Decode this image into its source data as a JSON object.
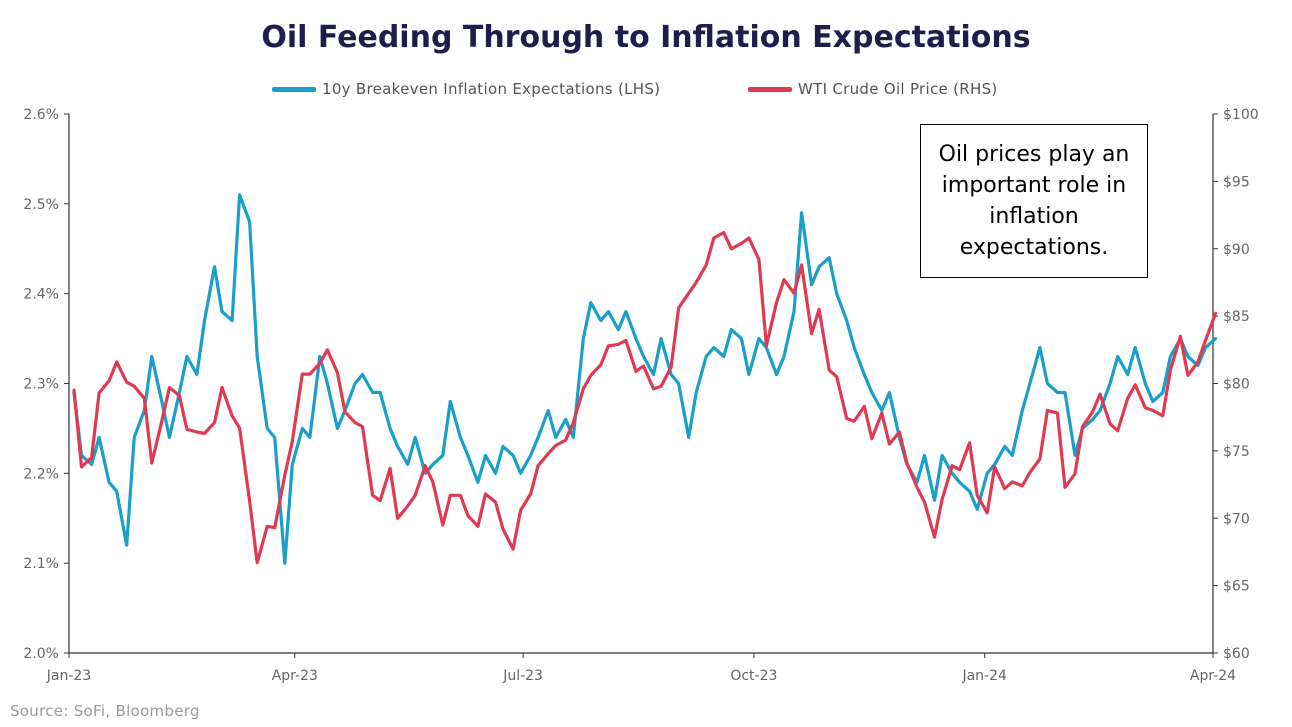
{
  "title": "Oil Feeding Through to Inflation Expectations",
  "source": "Source: SoFi, Bloomberg",
  "annotation": "Oil prices play an important role in inflation expectations.",
  "colors": {
    "breakeven": "#1a9fc9",
    "oil": "#e03a53",
    "title": "#1f1d4b"
  },
  "chart_data": {
    "type": "line",
    "title": "Oil Feeding Through to Inflation Expectations",
    "legend_position": "top-center",
    "grid": false,
    "x_tick_labels": [
      "Jan-23",
      "Apr-23",
      "Jul-23",
      "Oct-23",
      "Jan-24",
      "Apr-24"
    ],
    "x_range": [
      "2023-01-01",
      "2024-04-01"
    ],
    "y_left": {
      "range": [
        2.0,
        2.6
      ],
      "ticks": [
        2.0,
        2.1,
        2.2,
        2.3,
        2.4,
        2.5,
        2.6
      ],
      "tick_labels": [
        "2.0%",
        "2.1%",
        "2.2%",
        "2.3%",
        "2.4%",
        "2.5%",
        "2.6%"
      ]
    },
    "y_right": {
      "range": [
        60,
        100
      ],
      "ticks": [
        60,
        65,
        70,
        75,
        80,
        85,
        90,
        95,
        100
      ],
      "tick_labels": [
        "$60",
        "$65",
        "$70",
        "$75",
        "$80",
        "$85",
        "$90",
        "$95",
        "$100"
      ]
    },
    "series": [
      {
        "name": "10y Breakeven Inflation Expectations (LHS)",
        "axis": "left",
        "points": [
          [
            "2023-01-03",
            2.29
          ],
          [
            "2023-01-06",
            2.22
          ],
          [
            "2023-01-10",
            2.21
          ],
          [
            "2023-01-13",
            2.24
          ],
          [
            "2023-01-17",
            2.19
          ],
          [
            "2023-01-20",
            2.18
          ],
          [
            "2023-01-24",
            2.12
          ],
          [
            "2023-01-27",
            2.24
          ],
          [
            "2023-01-31",
            2.27
          ],
          [
            "2023-02-03",
            2.33
          ],
          [
            "2023-02-07",
            2.28
          ],
          [
            "2023-02-10",
            2.24
          ],
          [
            "2023-02-14",
            2.29
          ],
          [
            "2023-02-17",
            2.33
          ],
          [
            "2023-02-21",
            2.31
          ],
          [
            "2023-02-24",
            2.37
          ],
          [
            "2023-02-28",
            2.43
          ],
          [
            "2023-03-03",
            2.38
          ],
          [
            "2023-03-07",
            2.37
          ],
          [
            "2023-03-10",
            2.51
          ],
          [
            "2023-03-14",
            2.48
          ],
          [
            "2023-03-17",
            2.33
          ],
          [
            "2023-03-21",
            2.25
          ],
          [
            "2023-03-24",
            2.24
          ],
          [
            "2023-03-28",
            2.1
          ],
          [
            "2023-03-31",
            2.21
          ],
          [
            "2023-04-04",
            2.25
          ],
          [
            "2023-04-07",
            2.24
          ],
          [
            "2023-04-11",
            2.33
          ],
          [
            "2023-04-14",
            2.3
          ],
          [
            "2023-04-18",
            2.25
          ],
          [
            "2023-04-21",
            2.27
          ],
          [
            "2023-04-25",
            2.3
          ],
          [
            "2023-04-28",
            2.31
          ],
          [
            "2023-05-02",
            2.29
          ],
          [
            "2023-05-05",
            2.29
          ],
          [
            "2023-05-09",
            2.25
          ],
          [
            "2023-05-12",
            2.23
          ],
          [
            "2023-05-16",
            2.21
          ],
          [
            "2023-05-19",
            2.24
          ],
          [
            "2023-05-23",
            2.2
          ],
          [
            "2023-05-26",
            2.21
          ],
          [
            "2023-05-30",
            2.22
          ],
          [
            "2023-06-02",
            2.28
          ],
          [
            "2023-06-06",
            2.24
          ],
          [
            "2023-06-09",
            2.22
          ],
          [
            "2023-06-13",
            2.19
          ],
          [
            "2023-06-16",
            2.22
          ],
          [
            "2023-06-20",
            2.2
          ],
          [
            "2023-06-23",
            2.23
          ],
          [
            "2023-06-27",
            2.22
          ],
          [
            "2023-06-30",
            2.2
          ],
          [
            "2023-07-04",
            2.22
          ],
          [
            "2023-07-07",
            2.24
          ],
          [
            "2023-07-11",
            2.27
          ],
          [
            "2023-07-14",
            2.24
          ],
          [
            "2023-07-18",
            2.26
          ],
          [
            "2023-07-21",
            2.24
          ],
          [
            "2023-07-25",
            2.35
          ],
          [
            "2023-07-28",
            2.39
          ],
          [
            "2023-08-01",
            2.37
          ],
          [
            "2023-08-04",
            2.38
          ],
          [
            "2023-08-08",
            2.36
          ],
          [
            "2023-08-11",
            2.38
          ],
          [
            "2023-08-15",
            2.35
          ],
          [
            "2023-08-18",
            2.33
          ],
          [
            "2023-08-22",
            2.31
          ],
          [
            "2023-08-25",
            2.35
          ],
          [
            "2023-08-29",
            2.31
          ],
          [
            "2023-09-01",
            2.3
          ],
          [
            "2023-09-05",
            2.24
          ],
          [
            "2023-09-08",
            2.29
          ],
          [
            "2023-09-12",
            2.33
          ],
          [
            "2023-09-15",
            2.34
          ],
          [
            "2023-09-19",
            2.33
          ],
          [
            "2023-09-22",
            2.36
          ],
          [
            "2023-09-26",
            2.35
          ],
          [
            "2023-09-29",
            2.31
          ],
          [
            "2023-10-03",
            2.35
          ],
          [
            "2023-10-06",
            2.34
          ],
          [
            "2023-10-10",
            2.31
          ],
          [
            "2023-10-13",
            2.33
          ],
          [
            "2023-10-17",
            2.38
          ],
          [
            "2023-10-20",
            2.49
          ],
          [
            "2023-10-24",
            2.41
          ],
          [
            "2023-10-27",
            2.43
          ],
          [
            "2023-10-31",
            2.44
          ],
          [
            "2023-11-03",
            2.4
          ],
          [
            "2023-11-07",
            2.37
          ],
          [
            "2023-11-10",
            2.34
          ],
          [
            "2023-11-14",
            2.31
          ],
          [
            "2023-11-17",
            2.29
          ],
          [
            "2023-11-21",
            2.27
          ],
          [
            "2023-11-24",
            2.29
          ],
          [
            "2023-11-28",
            2.24
          ],
          [
            "2023-12-01",
            2.21
          ],
          [
            "2023-12-05",
            2.19
          ],
          [
            "2023-12-08",
            2.22
          ],
          [
            "2023-12-12",
            2.17
          ],
          [
            "2023-12-15",
            2.22
          ],
          [
            "2023-12-19",
            2.2
          ],
          [
            "2023-12-22",
            2.19
          ],
          [
            "2023-12-26",
            2.18
          ],
          [
            "2023-12-29",
            2.16
          ],
          [
            "2024-01-02",
            2.2
          ],
          [
            "2024-01-05",
            2.21
          ],
          [
            "2024-01-09",
            2.23
          ],
          [
            "2024-01-12",
            2.22
          ],
          [
            "2024-01-16",
            2.27
          ],
          [
            "2024-01-19",
            2.3
          ],
          [
            "2024-01-23",
            2.34
          ],
          [
            "2024-01-26",
            2.3
          ],
          [
            "2024-01-30",
            2.29
          ],
          [
            "2024-02-02",
            2.29
          ],
          [
            "2024-02-06",
            2.22
          ],
          [
            "2024-02-09",
            2.25
          ],
          [
            "2024-02-13",
            2.26
          ],
          [
            "2024-02-16",
            2.27
          ],
          [
            "2024-02-20",
            2.3
          ],
          [
            "2024-02-23",
            2.33
          ],
          [
            "2024-02-27",
            2.31
          ],
          [
            "2024-03-01",
            2.34
          ],
          [
            "2024-03-05",
            2.3
          ],
          [
            "2024-03-08",
            2.28
          ],
          [
            "2024-03-12",
            2.29
          ],
          [
            "2024-03-15",
            2.33
          ],
          [
            "2024-03-19",
            2.35
          ],
          [
            "2024-03-22",
            2.33
          ],
          [
            "2024-03-26",
            2.32
          ],
          [
            "2024-03-29",
            2.34
          ],
          [
            "2024-04-02",
            2.35
          ]
        ]
      },
      {
        "name": "WTI Crude Oil Price (RHS)",
        "axis": "right",
        "points": [
          [
            "2023-01-03",
            79.5
          ],
          [
            "2023-01-06",
            73.8
          ],
          [
            "2023-01-10",
            74.5
          ],
          [
            "2023-01-13",
            79.3
          ],
          [
            "2023-01-17",
            80.2
          ],
          [
            "2023-01-20",
            81.6
          ],
          [
            "2023-01-24",
            80.1
          ],
          [
            "2023-01-27",
            79.8
          ],
          [
            "2023-01-31",
            78.9
          ],
          [
            "2023-02-03",
            74.1
          ],
          [
            "2023-02-07",
            77.2
          ],
          [
            "2023-02-10",
            79.7
          ],
          [
            "2023-02-14",
            79.1
          ],
          [
            "2023-02-17",
            76.6
          ],
          [
            "2023-02-21",
            76.4
          ],
          [
            "2023-02-24",
            76.3
          ],
          [
            "2023-02-28",
            77.1
          ],
          [
            "2023-03-03",
            79.7
          ],
          [
            "2023-03-07",
            77.6
          ],
          [
            "2023-03-10",
            76.7
          ],
          [
            "2023-03-14",
            71.3
          ],
          [
            "2023-03-17",
            66.7
          ],
          [
            "2023-03-21",
            69.4
          ],
          [
            "2023-03-24",
            69.3
          ],
          [
            "2023-03-28",
            73.2
          ],
          [
            "2023-03-31",
            75.7
          ],
          [
            "2023-04-04",
            80.7
          ],
          [
            "2023-04-07",
            80.7
          ],
          [
            "2023-04-11",
            81.5
          ],
          [
            "2023-04-14",
            82.5
          ],
          [
            "2023-04-18",
            80.8
          ],
          [
            "2023-04-21",
            77.9
          ],
          [
            "2023-04-25",
            77.1
          ],
          [
            "2023-04-28",
            76.8
          ],
          [
            "2023-05-02",
            71.7
          ],
          [
            "2023-05-05",
            71.3
          ],
          [
            "2023-05-09",
            73.7
          ],
          [
            "2023-05-12",
            70.0
          ],
          [
            "2023-05-16",
            70.9
          ],
          [
            "2023-05-19",
            71.7
          ],
          [
            "2023-05-23",
            73.9
          ],
          [
            "2023-05-26",
            72.7
          ],
          [
            "2023-05-30",
            69.5
          ],
          [
            "2023-06-02",
            71.7
          ],
          [
            "2023-06-06",
            71.7
          ],
          [
            "2023-06-09",
            70.2
          ],
          [
            "2023-06-13",
            69.4
          ],
          [
            "2023-06-16",
            71.8
          ],
          [
            "2023-06-20",
            71.2
          ],
          [
            "2023-06-23",
            69.2
          ],
          [
            "2023-06-27",
            67.7
          ],
          [
            "2023-06-30",
            70.6
          ],
          [
            "2023-07-04",
            71.8
          ],
          [
            "2023-07-07",
            73.9
          ],
          [
            "2023-07-11",
            74.8
          ],
          [
            "2023-07-14",
            75.4
          ],
          [
            "2023-07-18",
            75.8
          ],
          [
            "2023-07-21",
            77.1
          ],
          [
            "2023-07-25",
            79.6
          ],
          [
            "2023-07-28",
            80.6
          ],
          [
            "2023-08-01",
            81.4
          ],
          [
            "2023-08-04",
            82.8
          ],
          [
            "2023-08-08",
            82.9
          ],
          [
            "2023-08-11",
            83.2
          ],
          [
            "2023-08-15",
            80.9
          ],
          [
            "2023-08-18",
            81.3
          ],
          [
            "2023-08-22",
            79.6
          ],
          [
            "2023-08-25",
            79.8
          ],
          [
            "2023-08-29",
            81.2
          ],
          [
            "2023-09-01",
            85.6
          ],
          [
            "2023-09-05",
            86.7
          ],
          [
            "2023-09-08",
            87.5
          ],
          [
            "2023-09-12",
            88.8
          ],
          [
            "2023-09-15",
            90.8
          ],
          [
            "2023-09-19",
            91.2
          ],
          [
            "2023-09-22",
            90.0
          ],
          [
            "2023-09-26",
            90.4
          ],
          [
            "2023-09-29",
            90.8
          ],
          [
            "2023-10-03",
            89.2
          ],
          [
            "2023-10-06",
            82.8
          ],
          [
            "2023-10-10",
            86.0
          ],
          [
            "2023-10-13",
            87.7
          ],
          [
            "2023-10-17",
            86.7
          ],
          [
            "2023-10-20",
            88.8
          ],
          [
            "2023-10-24",
            83.7
          ],
          [
            "2023-10-27",
            85.5
          ],
          [
            "2023-10-31",
            81.0
          ],
          [
            "2023-11-03",
            80.5
          ],
          [
            "2023-11-07",
            77.4
          ],
          [
            "2023-11-10",
            77.2
          ],
          [
            "2023-11-14",
            78.3
          ],
          [
            "2023-11-17",
            75.9
          ],
          [
            "2023-11-21",
            77.8
          ],
          [
            "2023-11-24",
            75.5
          ],
          [
            "2023-11-28",
            76.4
          ],
          [
            "2023-12-01",
            74.1
          ],
          [
            "2023-12-05",
            72.3
          ],
          [
            "2023-12-08",
            71.2
          ],
          [
            "2023-12-12",
            68.6
          ],
          [
            "2023-12-15",
            71.4
          ],
          [
            "2023-12-19",
            73.9
          ],
          [
            "2023-12-22",
            73.6
          ],
          [
            "2023-12-26",
            75.6
          ],
          [
            "2023-12-29",
            71.7
          ],
          [
            "2024-01-02",
            70.4
          ],
          [
            "2024-01-05",
            73.8
          ],
          [
            "2024-01-09",
            72.2
          ],
          [
            "2024-01-12",
            72.7
          ],
          [
            "2024-01-16",
            72.4
          ],
          [
            "2024-01-19",
            73.4
          ],
          [
            "2024-01-23",
            74.4
          ],
          [
            "2024-01-26",
            78.0
          ],
          [
            "2024-01-30",
            77.8
          ],
          [
            "2024-02-02",
            72.3
          ],
          [
            "2024-02-06",
            73.3
          ],
          [
            "2024-02-09",
            76.8
          ],
          [
            "2024-02-13",
            77.9
          ],
          [
            "2024-02-16",
            79.2
          ],
          [
            "2024-02-20",
            77.0
          ],
          [
            "2024-02-23",
            76.5
          ],
          [
            "2024-02-27",
            78.9
          ],
          [
            "2024-03-01",
            79.9
          ],
          [
            "2024-03-05",
            78.2
          ],
          [
            "2024-03-08",
            78.0
          ],
          [
            "2024-03-12",
            77.6
          ],
          [
            "2024-03-15",
            81.0
          ],
          [
            "2024-03-19",
            83.5
          ],
          [
            "2024-03-22",
            80.6
          ],
          [
            "2024-03-26",
            81.6
          ],
          [
            "2024-03-29",
            83.2
          ],
          [
            "2024-04-02",
            85.2
          ]
        ]
      }
    ]
  }
}
